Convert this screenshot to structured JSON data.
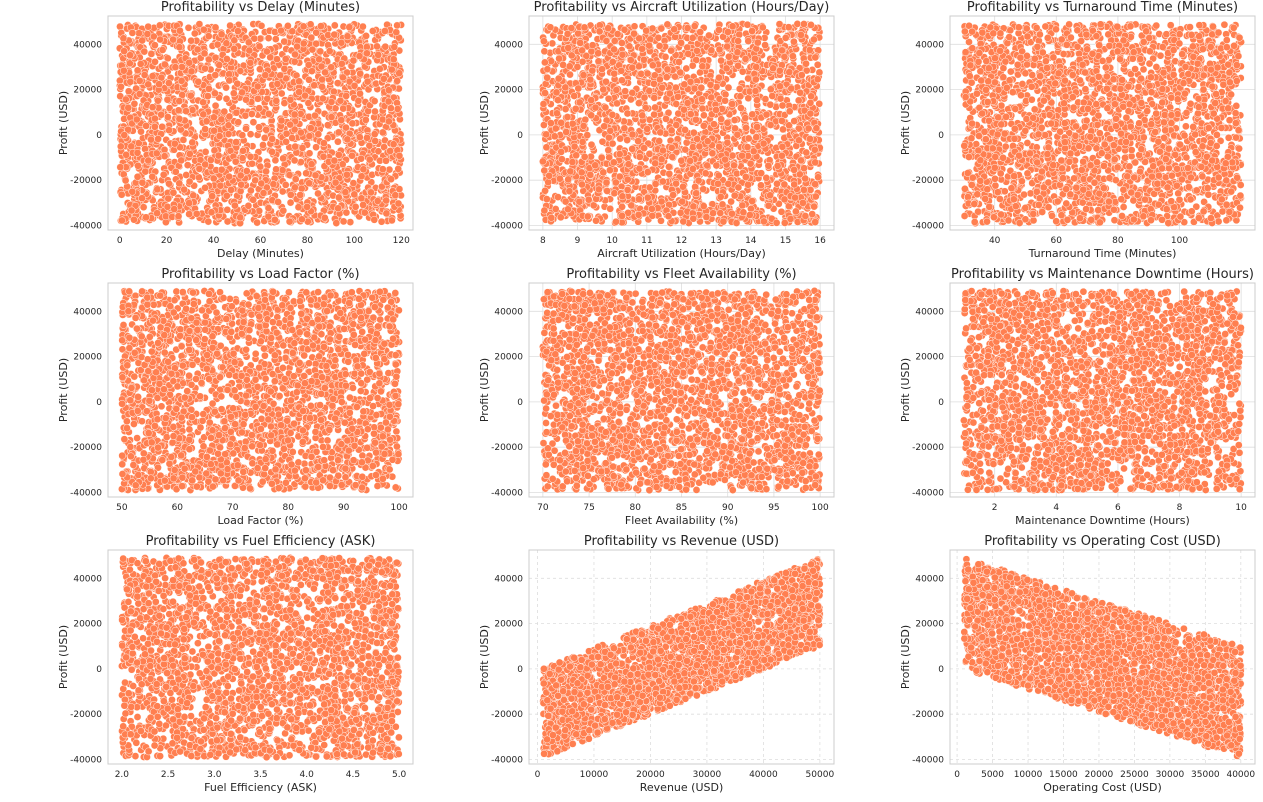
{
  "colors": {
    "marker": "#ff7f50",
    "marker_edge": "#ffffff",
    "grid": "#dddddd",
    "spine": "#cccccc",
    "text": "#262626"
  },
  "chart_data": [
    {
      "type": "scatter",
      "title": "Profitability vs Delay (Minutes)",
      "xlabel": "Delay (Minutes)",
      "ylabel": "Profit (USD)",
      "xlim": [
        -5,
        125
      ],
      "ylim": [
        -42000,
        52500
      ],
      "xticks": [
        0,
        20,
        40,
        60,
        80,
        100,
        120
      ],
      "xtick_labels": [
        "0",
        "20",
        "40",
        "60",
        "80",
        "100",
        "120"
      ],
      "yticks": [
        -40000,
        -20000,
        0,
        20000,
        40000
      ],
      "ytick_labels": [
        "-40000",
        "-20000",
        "0",
        "20000",
        "40000"
      ],
      "grid": false,
      "distribution": {
        "kind": "uniform",
        "x_range": [
          0,
          120
        ],
        "y_range": [
          -39000,
          49000
        ]
      }
    },
    {
      "type": "scatter",
      "title": "Profitability vs Aircraft Utilization (Hours/Day)",
      "xlabel": "Aircraft Utilization (Hours/Day)",
      "ylabel": "Profit (USD)",
      "xlim": [
        7.6,
        16.4
      ],
      "ylim": [
        -42000,
        52500
      ],
      "xticks": [
        8,
        9,
        10,
        11,
        12,
        13,
        14,
        15,
        16
      ],
      "xtick_labels": [
        "8",
        "9",
        "10",
        "11",
        "12",
        "13",
        "14",
        "15",
        "16"
      ],
      "yticks": [
        -40000,
        -20000,
        0,
        20000,
        40000
      ],
      "ytick_labels": [
        "-40000",
        "-20000",
        "0",
        "20000",
        "40000"
      ],
      "grid": true,
      "distribution": {
        "kind": "uniform",
        "x_range": [
          8,
          16
        ],
        "y_range": [
          -39000,
          49000
        ]
      }
    },
    {
      "type": "scatter",
      "title": "Profitability vs Turnaround Time (Minutes)",
      "xlabel": "Turnaround Time (Minutes)",
      "ylabel": "Profit (USD)",
      "xlim": [
        25.5,
        124.5
      ],
      "ylim": [
        -42000,
        52500
      ],
      "xticks": [
        40,
        60,
        80,
        100
      ],
      "xtick_labels": [
        "40",
        "60",
        "80",
        "100"
      ],
      "yticks": [
        -40000,
        -20000,
        0,
        20000,
        40000
      ],
      "ytick_labels": [
        "-40000",
        "-20000",
        "0",
        "20000",
        "40000"
      ],
      "grid": true,
      "distribution": {
        "kind": "uniform",
        "x_range": [
          30,
          120
        ],
        "y_range": [
          -39000,
          49000
        ]
      }
    },
    {
      "type": "scatter",
      "title": "Profitability vs Load Factor (%)",
      "xlabel": "Load Factor (%)",
      "ylabel": "Profit (USD)",
      "xlim": [
        47.5,
        102.5
      ],
      "ylim": [
        -42000,
        52500
      ],
      "xticks": [
        50,
        60,
        70,
        80,
        90,
        100
      ],
      "xtick_labels": [
        "50",
        "60",
        "70",
        "80",
        "90",
        "100"
      ],
      "yticks": [
        -40000,
        -20000,
        0,
        20000,
        40000
      ],
      "ytick_labels": [
        "-40000",
        "-20000",
        "0",
        "20000",
        "40000"
      ],
      "grid": false,
      "distribution": {
        "kind": "uniform",
        "x_range": [
          50,
          100
        ],
        "y_range": [
          -39000,
          49000
        ]
      }
    },
    {
      "type": "scatter",
      "title": "Profitability vs Fleet Availability (%)",
      "xlabel": "Fleet Availability (%)",
      "ylabel": "Profit (USD)",
      "xlim": [
        68.5,
        101.5
      ],
      "ylim": [
        -42000,
        52500
      ],
      "xticks": [
        70,
        75,
        80,
        85,
        90,
        95,
        100
      ],
      "xtick_labels": [
        "70",
        "75",
        "80",
        "85",
        "90",
        "95",
        "100"
      ],
      "yticks": [
        -40000,
        -20000,
        0,
        20000,
        40000
      ],
      "ytick_labels": [
        "-40000",
        "-20000",
        "0",
        "20000",
        "40000"
      ],
      "grid": true,
      "distribution": {
        "kind": "uniform",
        "x_range": [
          70,
          100
        ],
        "y_range": [
          -39000,
          49000
        ]
      }
    },
    {
      "type": "scatter",
      "title": "Profitability vs Maintenance Downtime (Hours)",
      "xlabel": "Maintenance Downtime (Hours)",
      "ylabel": "Profit (USD)",
      "xlim": [
        0.55,
        10.45
      ],
      "ylim": [
        -42000,
        52500
      ],
      "xticks": [
        2,
        4,
        6,
        8,
        10
      ],
      "xtick_labels": [
        "2",
        "4",
        "6",
        "8",
        "10"
      ],
      "yticks": [
        -40000,
        -20000,
        0,
        20000,
        40000
      ],
      "ytick_labels": [
        "-40000",
        "-20000",
        "0",
        "20000",
        "40000"
      ],
      "grid": true,
      "distribution": {
        "kind": "uniform",
        "x_range": [
          1,
          10
        ],
        "y_range": [
          -39000,
          49000
        ]
      }
    },
    {
      "type": "scatter",
      "title": "Profitability vs Fuel Efficiency (ASK)",
      "xlabel": "Fuel Efficiency (ASK)",
      "ylabel": "Profit (USD)",
      "xlim": [
        1.85,
        5.15
      ],
      "ylim": [
        -42000,
        52500
      ],
      "xticks": [
        2.0,
        2.5,
        3.0,
        3.5,
        4.0,
        4.5,
        5.0
      ],
      "xtick_labels": [
        "2.0",
        "2.5",
        "3.0",
        "3.5",
        "4.0",
        "4.5",
        "5.0"
      ],
      "yticks": [
        -40000,
        -20000,
        0,
        20000,
        40000
      ],
      "ytick_labels": [
        "-40000",
        "-20000",
        "0",
        "20000",
        "40000"
      ],
      "grid": false,
      "distribution": {
        "kind": "uniform",
        "x_range": [
          2,
          5
        ],
        "y_range": [
          -39000,
          49000
        ]
      }
    },
    {
      "type": "scatter",
      "title": "Profitability vs Revenue (USD)",
      "xlabel": "Revenue (USD)",
      "ylabel": "Profit (USD)",
      "xlim": [
        -1500,
        52500
      ],
      "ylim": [
        -42000,
        52500
      ],
      "xticks": [
        0,
        10000,
        20000,
        30000,
        40000,
        50000
      ],
      "xtick_labels": [
        "0",
        "10000",
        "20000",
        "30000",
        "40000",
        "50000"
      ],
      "yticks": [
        -40000,
        -20000,
        0,
        20000,
        40000
      ],
      "ytick_labels": [
        "-40000",
        "-20000",
        "0",
        "20000",
        "40000"
      ],
      "grid": true,
      "grid_style": "dashed",
      "distribution": {
        "kind": "band",
        "x_range": [
          1000,
          50000
        ],
        "cost_range": [
          1000,
          40000
        ],
        "profit_equals": "x - cost"
      }
    },
    {
      "type": "scatter",
      "title": "Profitability vs Operating Cost (USD)",
      "xlabel": "Operating Cost (USD)",
      "ylabel": "Profit (USD)",
      "xlim": [
        -1000,
        42000
      ],
      "ylim": [
        -42000,
        52500
      ],
      "xticks": [
        0,
        5000,
        10000,
        15000,
        20000,
        25000,
        30000,
        35000,
        40000
      ],
      "xtick_labels": [
        "0",
        "5000",
        "10000",
        "15000",
        "20000",
        "25000",
        "30000",
        "35000",
        "40000"
      ],
      "yticks": [
        -40000,
        -20000,
        0,
        20000,
        40000
      ],
      "ytick_labels": [
        "-40000",
        "-20000",
        "0",
        "20000",
        "40000"
      ],
      "grid": true,
      "grid_style": "dashed",
      "distribution": {
        "kind": "band",
        "x_range": [
          1000,
          40000
        ],
        "revenue_range": [
          1000,
          50000
        ],
        "profit_equals": "revenue - x"
      }
    }
  ]
}
